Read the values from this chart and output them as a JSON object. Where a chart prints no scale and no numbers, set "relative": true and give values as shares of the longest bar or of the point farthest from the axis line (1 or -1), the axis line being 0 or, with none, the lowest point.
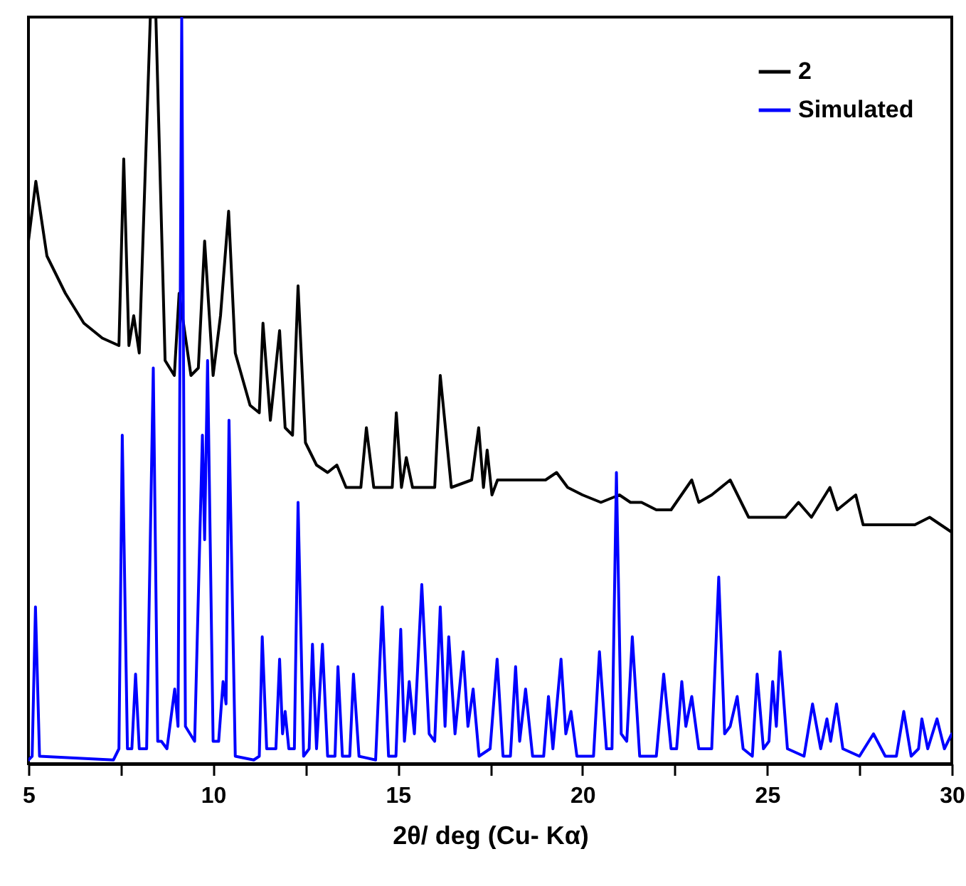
{
  "chart_data": {
    "type": "line",
    "relative": true,
    "xlabel": "2θ/ deg (Cu- Kα)",
    "xlim": [
      5,
      30
    ],
    "xticks": [
      5,
      {
        "value": 7.5,
        "label": null
      },
      10,
      {
        "value": 12.5,
        "label": null
      },
      15,
      {
        "value": 17.5,
        "label": null
      },
      20,
      {
        "value": 22.5,
        "label": null
      },
      25,
      {
        "value": 27.5,
        "label": null
      },
      30
    ],
    "legend": "top right",
    "marker": "none",
    "line_style": "solid",
    "series": [
      {
        "name": "2",
        "color": "#000000",
        "x": [
          5.0,
          5.2,
          5.5,
          6.0,
          6.5,
          7.0,
          7.45,
          7.58,
          7.72,
          7.85,
          8.0,
          8.3,
          8.45,
          8.7,
          8.95,
          9.08,
          9.4,
          9.6,
          9.77,
          10.0,
          10.2,
          10.42,
          10.6,
          11.0,
          11.25,
          11.35,
          11.55,
          11.8,
          11.95,
          12.15,
          12.3,
          12.5,
          12.8,
          13.1,
          13.35,
          13.6,
          14.0,
          14.15,
          14.35,
          14.85,
          14.96,
          15.1,
          15.23,
          15.4,
          16.0,
          16.15,
          16.45,
          17.0,
          17.19,
          17.32,
          17.42,
          17.55,
          17.7,
          18.5,
          19.0,
          19.3,
          19.6,
          20.0,
          20.5,
          21.0,
          21.3,
          21.6,
          22.0,
          22.4,
          22.96,
          23.15,
          23.5,
          24.0,
          24.5,
          25.0,
          25.5,
          25.85,
          26.2,
          26.7,
          26.9,
          27.4,
          27.6,
          28.0,
          29.0,
          29.4,
          30.0
        ],
        "values": [
          0.7,
          0.78,
          0.68,
          0.63,
          0.59,
          0.57,
          0.56,
          0.81,
          0.56,
          0.6,
          0.55,
          1,
          1,
          0.54,
          0.52,
          0.63,
          0.52,
          0.53,
          0.7,
          0.52,
          0.6,
          0.74,
          0.55,
          0.48,
          0.47,
          0.59,
          0.46,
          0.58,
          0.45,
          0.44,
          0.64,
          0.43,
          0.4,
          0.39,
          0.4,
          0.37,
          0.37,
          0.45,
          0.37,
          0.37,
          0.47,
          0.37,
          0.41,
          0.37,
          0.37,
          0.52,
          0.37,
          0.38,
          0.45,
          0.37,
          0.42,
          0.36,
          0.38,
          0.38,
          0.38,
          0.39,
          0.37,
          0.36,
          0.35,
          0.36,
          0.35,
          0.35,
          0.34,
          0.34,
          0.38,
          0.35,
          0.36,
          0.38,
          0.33,
          0.33,
          0.33,
          0.35,
          0.33,
          0.37,
          0.34,
          0.36,
          0.32,
          0.32,
          0.32,
          0.33,
          0.31
        ]
      },
      {
        "name": "Simulated",
        "color": "#0000ff",
        "x": [
          5.0,
          5.1,
          5.19,
          5.3,
          7.3,
          7.45,
          7.54,
          7.68,
          7.8,
          7.9,
          8.0,
          8.2,
          8.38,
          8.5,
          8.6,
          8.75,
          8.96,
          9.05,
          9.15,
          9.25,
          9.5,
          9.71,
          9.77,
          9.85,
          10.0,
          10.15,
          10.27,
          10.35,
          10.43,
          10.6,
          11.1,
          11.25,
          11.33,
          11.45,
          11.6,
          11.7,
          11.8,
          11.88,
          11.95,
          12.05,
          12.2,
          12.3,
          12.45,
          12.6,
          12.69,
          12.8,
          12.96,
          13.1,
          13.3,
          13.38,
          13.5,
          13.7,
          13.8,
          13.95,
          14.4,
          14.58,
          14.75,
          14.95,
          15.08,
          15.18,
          15.31,
          15.45,
          15.65,
          15.85,
          16.0,
          16.15,
          16.28,
          16.38,
          16.55,
          16.77,
          16.9,
          17.04,
          17.2,
          17.5,
          17.69,
          17.85,
          18.05,
          18.19,
          18.3,
          18.46,
          18.65,
          18.95,
          19.08,
          19.2,
          19.42,
          19.55,
          19.69,
          19.85,
          20.3,
          20.46,
          20.65,
          20.8,
          20.92,
          21.05,
          21.2,
          21.35,
          21.55,
          22.0,
          22.2,
          22.4,
          22.55,
          22.69,
          22.8,
          22.96,
          23.15,
          23.5,
          23.69,
          23.85,
          24.0,
          24.19,
          24.35,
          24.6,
          24.73,
          24.9,
          25.05,
          25.15,
          25.25,
          25.35,
          25.55,
          26.0,
          26.23,
          26.45,
          26.62,
          26.72,
          26.88,
          27.05,
          27.5,
          27.88,
          28.2,
          28.5,
          28.7,
          28.9,
          29.1,
          29.19,
          29.35,
          29.6,
          29.8,
          30.0
        ],
        "values": [
          0.005,
          0.01,
          0.21,
          0.01,
          0.005,
          0.02,
          0.44,
          0.02,
          0.02,
          0.12,
          0.02,
          0.02,
          0.53,
          0.03,
          0.03,
          0.02,
          0.1,
          0.05,
          1,
          0.05,
          0.03,
          0.44,
          0.3,
          0.54,
          0.03,
          0.03,
          0.11,
          0.08,
          0.46,
          0.01,
          0.005,
          0.01,
          0.17,
          0.02,
          0.02,
          0.02,
          0.14,
          0.04,
          0.07,
          0.02,
          0.02,
          0.35,
          0.01,
          0.02,
          0.16,
          0.02,
          0.16,
          0.01,
          0.01,
          0.13,
          0.01,
          0.01,
          0.12,
          0.01,
          0.005,
          0.21,
          0.01,
          0.01,
          0.18,
          0.03,
          0.11,
          0.04,
          0.24,
          0.04,
          0.03,
          0.21,
          0.05,
          0.17,
          0.04,
          0.15,
          0.05,
          0.1,
          0.01,
          0.02,
          0.14,
          0.01,
          0.01,
          0.13,
          0.03,
          0.1,
          0.01,
          0.01,
          0.09,
          0.02,
          0.14,
          0.04,
          0.07,
          0.01,
          0.01,
          0.15,
          0.02,
          0.02,
          0.39,
          0.04,
          0.03,
          0.17,
          0.01,
          0.01,
          0.12,
          0.02,
          0.02,
          0.11,
          0.05,
          0.09,
          0.02,
          0.02,
          0.25,
          0.04,
          0.05,
          0.09,
          0.02,
          0.01,
          0.12,
          0.02,
          0.03,
          0.11,
          0.05,
          0.15,
          0.02,
          0.01,
          0.08,
          0.02,
          0.06,
          0.03,
          0.08,
          0.02,
          0.01,
          0.04,
          0.01,
          0.01,
          0.07,
          0.01,
          0.02,
          0.06,
          0.02,
          0.06,
          0.02,
          0.04
        ]
      }
    ]
  }
}
